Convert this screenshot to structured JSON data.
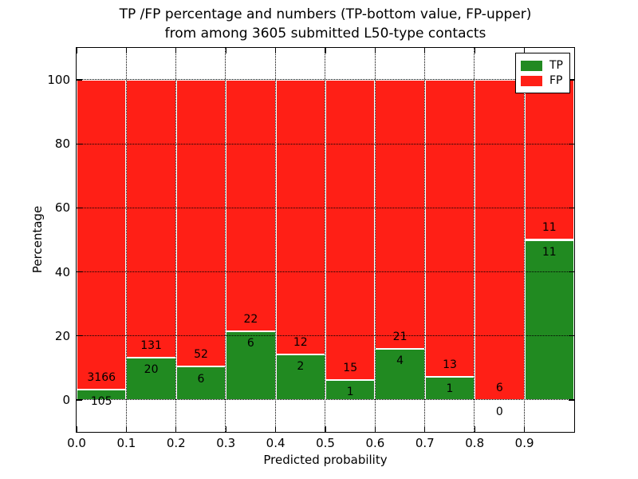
{
  "title": {
    "line1": "TP /FP percentage and numbers (TP-bottom value, FP-upper)",
    "line2": "from among 3605 submitted L50-type contacts"
  },
  "colors": {
    "tp": "#218a21",
    "fp": "#ff1f16",
    "background": "#ffffff",
    "text": "#000000"
  },
  "legend": {
    "position": "upper right",
    "entries": [
      {
        "label": "TP",
        "color": "#218a21"
      },
      {
        "label": "FP",
        "color": "#ff1f16"
      }
    ]
  },
  "chart_data": {
    "type": "bar",
    "stacked": true,
    "title": "TP /FP percentage and numbers (TP-bottom value, FP-upper) from among 3605 submitted L50-type contacts",
    "xlabel": "Predicted probability",
    "ylabel": "Percentage",
    "xlim": [
      0.0,
      1.0
    ],
    "ylim": [
      -10,
      110
    ],
    "bin_width": 0.1,
    "total_contacts": 3605,
    "grid": {
      "visible": true,
      "style": "dotted"
    },
    "x_ticks": [
      0.0,
      0.1,
      0.2,
      0.3,
      0.4,
      0.5,
      0.6,
      0.7,
      0.8,
      0.9
    ],
    "x_tick_labels": [
      "0.0",
      "0.1",
      "0.2",
      "0.3",
      "0.4",
      "0.5",
      "0.6",
      "0.7",
      "0.8",
      "0.9"
    ],
    "y_ticks": [
      0,
      20,
      40,
      60,
      80,
      100
    ],
    "y_tick_labels": [
      "0",
      "20",
      "40",
      "60",
      "80",
      "100"
    ],
    "series": [
      {
        "name": "TP",
        "color": "#218a21"
      },
      {
        "name": "FP",
        "color": "#ff1f16"
      }
    ],
    "annotation_offset_pct": 3.75,
    "bins": [
      {
        "range": "0.0-0.1",
        "tp": 105,
        "fp": 3166,
        "tp_pct": 3.21,
        "fp_pct": 96.79
      },
      {
        "range": "0.1-0.2",
        "tp": 20,
        "fp": 131,
        "tp_pct": 13.25,
        "fp_pct": 86.75
      },
      {
        "range": "0.2-0.3",
        "tp": 6,
        "fp": 52,
        "tp_pct": 10.34,
        "fp_pct": 89.66
      },
      {
        "range": "0.3-0.4",
        "tp": 6,
        "fp": 22,
        "tp_pct": 21.43,
        "fp_pct": 78.57
      },
      {
        "range": "0.4-0.5",
        "tp": 2,
        "fp": 12,
        "tp_pct": 14.29,
        "fp_pct": 85.71
      },
      {
        "range": "0.5-0.6",
        "tp": 1,
        "fp": 15,
        "tp_pct": 6.25,
        "fp_pct": 93.75
      },
      {
        "range": "0.6-0.7",
        "tp": 4,
        "fp": 21,
        "tp_pct": 16.0,
        "fp_pct": 84.0
      },
      {
        "range": "0.7-0.8",
        "tp": 1,
        "fp": 13,
        "tp_pct": 7.14,
        "fp_pct": 92.86
      },
      {
        "range": "0.8-0.9",
        "tp": 0,
        "fp": 6,
        "tp_pct": 0.0,
        "fp_pct": 100.0
      },
      {
        "range": "0.9-1.0",
        "tp": 11,
        "fp": 11,
        "tp_pct": 50.0,
        "fp_pct": 50.0
      }
    ]
  }
}
